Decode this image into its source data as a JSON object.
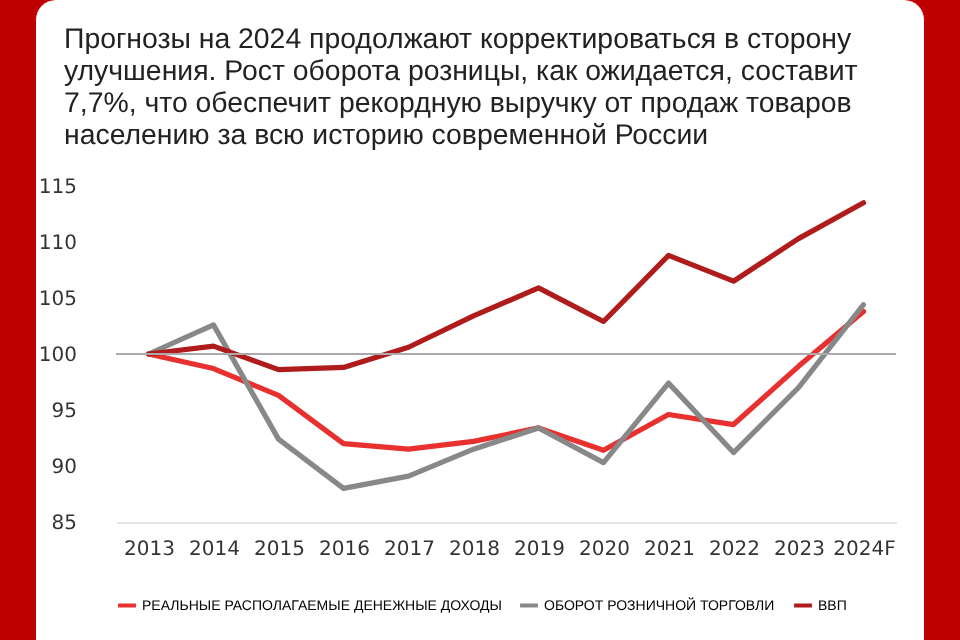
{
  "chart_data": {
    "type": "line",
    "subtitle": "Прогнозы на 2024 продолжают корректироваться в сторону улучшения. Рост оборота розницы, как ожидается, составит 7,7%, что обеспечит рекордную выручку от продаж товаров населению за всю историю современной России",
    "categories": [
      "2013",
      "2014",
      "2015",
      "2016",
      "2017",
      "2018",
      "2019",
      "2020",
      "2021",
      "2022",
      "2023",
      "2024F"
    ],
    "series": [
      {
        "name": "РЕАЛЬНЫЕ РАСПОЛАГАЕМЫЕ ДЕНЕЖНЫЕ ДОХОДЫ",
        "color": "#e8312f",
        "values": [
          100,
          98.7,
          96.3,
          92.0,
          91.5,
          92.2,
          93.4,
          91.4,
          94.6,
          93.7,
          98.9,
          103.8
        ]
      },
      {
        "name": "ОБОРОТ РОЗНИЧНОЙ ТОРГОВЛИ",
        "color": "#888888",
        "values": [
          100,
          102.6,
          92.4,
          88.0,
          89.1,
          91.5,
          93.4,
          90.3,
          97.4,
          91.2,
          97.0,
          104.4
        ]
      },
      {
        "name": "ВВП",
        "color": "#b01c1c",
        "values": [
          100,
          100.7,
          98.6,
          98.8,
          100.6,
          103.4,
          105.9,
          102.9,
          108.8,
          106.5,
          110.3,
          113.5
        ]
      }
    ],
    "ylim": [
      85,
      115
    ],
    "yticks": [
      85,
      90,
      95,
      100,
      105,
      110,
      115
    ],
    "ref_lines": [
      {
        "axis": "y",
        "value": 100,
        "color": "#aaaaaa"
      }
    ],
    "legend": "bottom",
    "grid": false,
    "line_style": "solid"
  }
}
